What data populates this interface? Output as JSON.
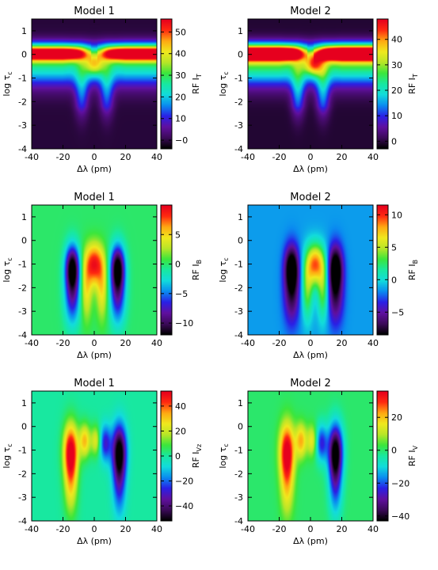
{
  "colors": {
    "axis": "#000000",
    "background": "#ffffff"
  },
  "colormap": [
    "#000000",
    "#3c0a5a",
    "#6010a0",
    "#2a20e6",
    "#0a8cf0",
    "#12dcdc",
    "#18e8a0",
    "#3ce63c",
    "#b8e628",
    "#f0e81e",
    "#ffa812",
    "#ff2a10",
    "#e6001e"
  ],
  "chart_data": [
    {
      "type": "heatmap",
      "title": "Model 1",
      "xlabel": "Δλ (pm)",
      "ylabel": "log τ",
      "ylabel_sub": "c",
      "xlim": [
        -40,
        40
      ],
      "ylim": [
        -4,
        1.5
      ],
      "xticks": [
        -40,
        -20,
        0,
        20,
        40
      ],
      "yticks": [
        -4,
        -3,
        -2,
        -1,
        0,
        1
      ],
      "colorbar": {
        "label": "RF I",
        "label_sub": "T",
        "range": [
          -4,
          56
        ],
        "ticks": [
          0,
          10,
          20,
          30,
          40,
          50
        ]
      },
      "field": "temperature"
    },
    {
      "type": "heatmap",
      "title": "Model 2",
      "xlabel": "Δλ (pm)",
      "ylabel": "log τ",
      "ylabel_sub": "c",
      "xlim": [
        -40,
        40
      ],
      "ylim": [
        -4,
        1.5
      ],
      "xticks": [
        -40,
        -20,
        0,
        20,
        40
      ],
      "yticks": [
        -4,
        -3,
        -2,
        -1,
        0,
        1
      ],
      "colorbar": {
        "label": "RF I",
        "label_sub": "T",
        "range": [
          -3,
          48
        ],
        "ticks": [
          0,
          10,
          20,
          30,
          40
        ]
      },
      "field": "temperature"
    },
    {
      "type": "heatmap",
      "title": "Model 1",
      "xlabel": "Δλ (pm)",
      "ylabel": "log τ",
      "ylabel_sub": "c",
      "xlim": [
        -40,
        40
      ],
      "ylim": [
        -4,
        1.5
      ],
      "xticks": [
        -40,
        -20,
        0,
        20,
        40
      ],
      "yticks": [
        -4,
        -3,
        -2,
        -1,
        0,
        1
      ],
      "colorbar": {
        "label": "RF I",
        "label_sub": "B",
        "range": [
          -12,
          10
        ],
        "ticks": [
          -10,
          -5,
          0,
          5
        ]
      },
      "field": "field_strength"
    },
    {
      "type": "heatmap",
      "title": "Model 2",
      "xlabel": "Δλ (pm)",
      "ylabel": "log τ",
      "ylabel_sub": "c",
      "xlim": [
        -40,
        40
      ],
      "ylim": [
        -4,
        1.5
      ],
      "xticks": [
        -40,
        -20,
        0,
        20,
        40
      ],
      "yticks": [
        -4,
        -3,
        -2,
        -1,
        0,
        1
      ],
      "colorbar": {
        "label": "RF I",
        "label_sub": "B",
        "range": [
          -8.5,
          11.5
        ],
        "ticks": [
          -5,
          0,
          5,
          10
        ]
      },
      "field": "field_strength"
    },
    {
      "type": "heatmap",
      "title": "Model 1",
      "xlabel": "Δλ (pm)",
      "ylabel": "log τ",
      "ylabel_sub": "c",
      "xlim": [
        -40,
        40
      ],
      "ylim": [
        -4,
        1.5
      ],
      "xticks": [
        -40,
        -20,
        0,
        20,
        40
      ],
      "yticks": [
        -4,
        -3,
        -2,
        -1,
        0,
        1
      ],
      "colorbar": {
        "label": "RF I",
        "label_sub": "Vz",
        "range": [
          -52,
          52
        ],
        "ticks": [
          -40,
          -20,
          0,
          20,
          40
        ]
      },
      "field": "velocity"
    },
    {
      "type": "heatmap",
      "title": "Model 2",
      "xlabel": "Δλ (pm)",
      "ylabel": "log τ",
      "ylabel_sub": "c",
      "xlim": [
        -40,
        40
      ],
      "ylim": [
        -4,
        1.5
      ],
      "xticks": [
        -40,
        -20,
        0,
        20,
        40
      ],
      "yticks": [
        -4,
        -3,
        -2,
        -1,
        0,
        1
      ],
      "colorbar": {
        "label": "RF I",
        "label_sub": "V",
        "range": [
          -43,
          36
        ],
        "ticks": [
          -40,
          -20,
          0,
          20
        ]
      },
      "field": "velocity"
    }
  ]
}
